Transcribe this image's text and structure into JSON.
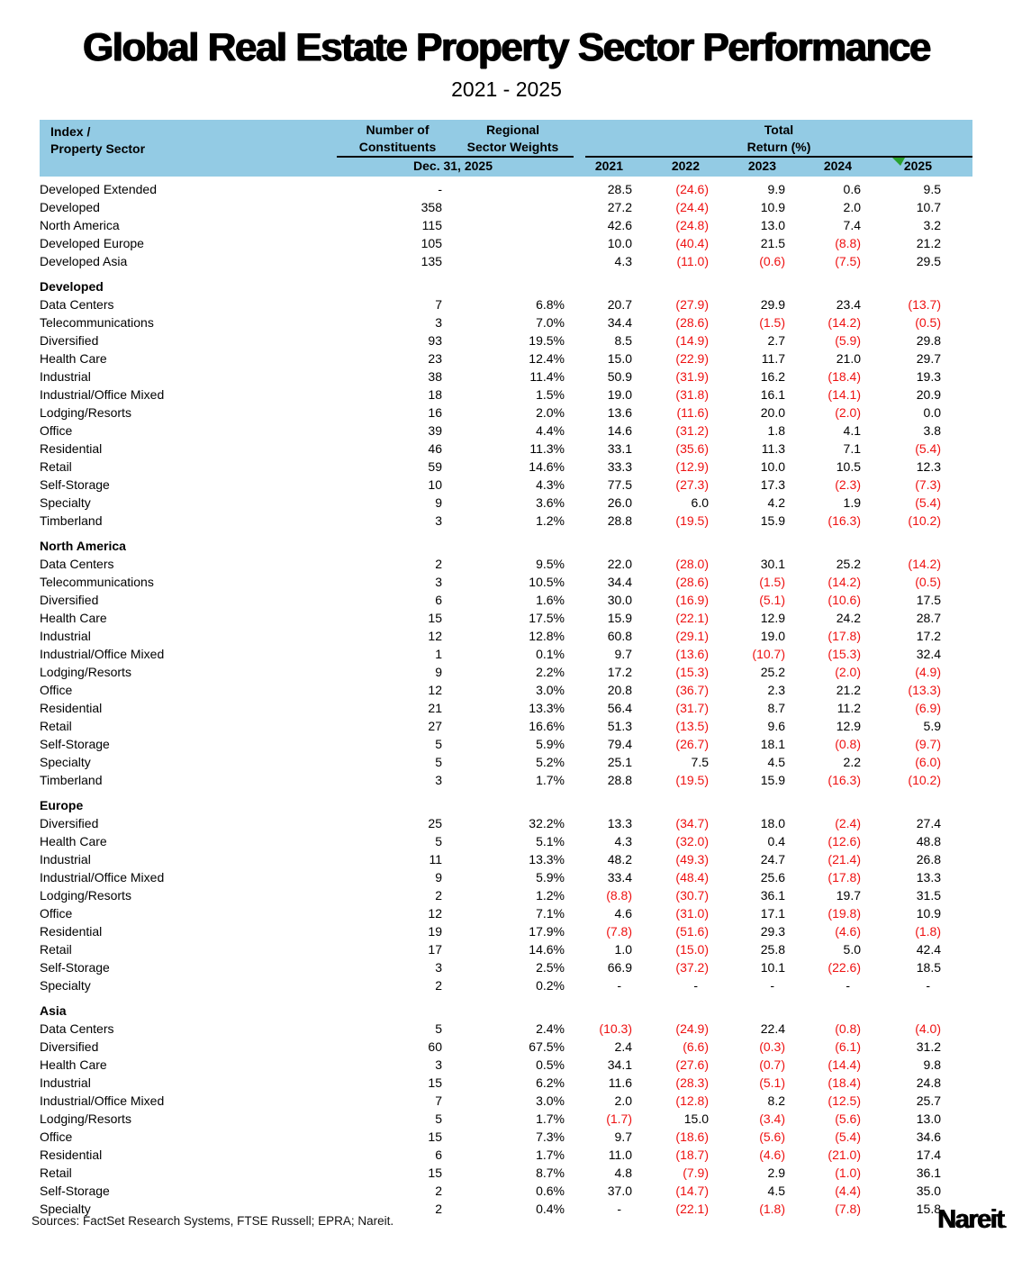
{
  "title": "Global Real Estate Property Sector Performance",
  "subtitle": "2021 - 2025",
  "colors": {
    "header_bg": "#93CBE4",
    "negative_red": "#EE1111",
    "flag_green": "#2AA12E",
    "text": "#000000"
  },
  "header": {
    "col1_line1": "Index /",
    "col1_line2": "Property Sector",
    "col2_line1": "Number of",
    "col2_line2": "Constituents",
    "col3_line1": "Regional",
    "col3_line2": "Sector Weights",
    "total_line1": "Total",
    "total_line2": "Return (%)",
    "date_label": "Dec. 31, 2025",
    "years": [
      "2021",
      "2022",
      "2023",
      "2024",
      "2025"
    ]
  },
  "chart_data": {
    "type": "table",
    "title": "Global Real Estate Property Sector Performance",
    "subtitle": "2021 - 2025",
    "columns": [
      "Index / Property Sector",
      "Number of Constituents Dec. 31, 2025",
      "Regional Sector Weights",
      "Total Return (%) 2021",
      "Total Return (%) 2022",
      "Total Return (%) 2023",
      "Total Return (%) 2024",
      "Total Return (%) 2025"
    ],
    "negative_format": "parentheses shown in red",
    "sections": [
      {
        "name": "",
        "rows": [
          [
            "Developed Extended",
            "-",
            "",
            "28.5",
            "(24.6)",
            "9.9",
            "0.6",
            "9.5"
          ],
          [
            "Developed",
            "358",
            "",
            "27.2",
            "(24.4)",
            "10.9",
            "2.0",
            "10.7"
          ],
          [
            "North America",
            "115",
            "",
            "42.6",
            "(24.8)",
            "13.0",
            "7.4",
            "3.2"
          ],
          [
            "Developed Europe",
            "105",
            "",
            "10.0",
            "(40.4)",
            "21.5",
            "(8.8)",
            "21.2"
          ],
          [
            "Developed Asia",
            "135",
            "",
            "4.3",
            "(11.0)",
            "(0.6)",
            "(7.5)",
            "29.5"
          ]
        ]
      },
      {
        "name": "Developed",
        "rows": [
          [
            "Data Centers",
            "7",
            "6.8%",
            "20.7",
            "(27.9)",
            "29.9",
            "23.4",
            "(13.7)"
          ],
          [
            "Telecommunications",
            "3",
            "7.0%",
            "34.4",
            "(28.6)",
            "(1.5)",
            "(14.2)",
            "(0.5)"
          ],
          [
            "Diversified",
            "93",
            "19.5%",
            "8.5",
            "(14.9)",
            "2.7",
            "(5.9)",
            "29.8"
          ],
          [
            "Health Care",
            "23",
            "12.4%",
            "15.0",
            "(22.9)",
            "11.7",
            "21.0",
            "29.7"
          ],
          [
            "Industrial",
            "38",
            "11.4%",
            "50.9",
            "(31.9)",
            "16.2",
            "(18.4)",
            "19.3"
          ],
          [
            "Industrial/Office Mixed",
            "18",
            "1.5%",
            "19.0",
            "(31.8)",
            "16.1",
            "(14.1)",
            "20.9"
          ],
          [
            "Lodging/Resorts",
            "16",
            "2.0%",
            "13.6",
            "(11.6)",
            "20.0",
            "(2.0)",
            "0.0"
          ],
          [
            "Office",
            "39",
            "4.4%",
            "14.6",
            "(31.2)",
            "1.8",
            "4.1",
            "3.8"
          ],
          [
            "Residential",
            "46",
            "11.3%",
            "33.1",
            "(35.6)",
            "11.3",
            "7.1",
            "(5.4)"
          ],
          [
            "Retail",
            "59",
            "14.6%",
            "33.3",
            "(12.9)",
            "10.0",
            "10.5",
            "12.3"
          ],
          [
            "Self-Storage",
            "10",
            "4.3%",
            "77.5",
            "(27.3)",
            "17.3",
            "(2.3)",
            "(7.3)"
          ],
          [
            "Specialty",
            "9",
            "3.6%",
            "26.0",
            "6.0",
            "4.2",
            "1.9",
            "(5.4)"
          ],
          [
            "Timberland",
            "3",
            "1.2%",
            "28.8",
            "(19.5)",
            "15.9",
            "(16.3)",
            "(10.2)"
          ]
        ]
      },
      {
        "name": "North America",
        "rows": [
          [
            "Data Centers",
            "2",
            "9.5%",
            "22.0",
            "(28.0)",
            "30.1",
            "25.2",
            "(14.2)"
          ],
          [
            "Telecommunications",
            "3",
            "10.5%",
            "34.4",
            "(28.6)",
            "(1.5)",
            "(14.2)",
            "(0.5)"
          ],
          [
            "Diversified",
            "6",
            "1.6%",
            "30.0",
            "(16.9)",
            "(5.1)",
            "(10.6)",
            "17.5"
          ],
          [
            "Health Care",
            "15",
            "17.5%",
            "15.9",
            "(22.1)",
            "12.9",
            "24.2",
            "28.7"
          ],
          [
            "Industrial",
            "12",
            "12.8%",
            "60.8",
            "(29.1)",
            "19.0",
            "(17.8)",
            "17.2"
          ],
          [
            "Industrial/Office Mixed",
            "1",
            "0.1%",
            "9.7",
            "(13.6)",
            "(10.7)",
            "(15.3)",
            "32.4"
          ],
          [
            "Lodging/Resorts",
            "9",
            "2.2%",
            "17.2",
            "(15.3)",
            "25.2",
            "(2.0)",
            "(4.9)"
          ],
          [
            "Office",
            "12",
            "3.0%",
            "20.8",
            "(36.7)",
            "2.3",
            "21.2",
            "(13.3)"
          ],
          [
            "Residential",
            "21",
            "13.3%",
            "56.4",
            "(31.7)",
            "8.7",
            "11.2",
            "(6.9)"
          ],
          [
            "Retail",
            "27",
            "16.6%",
            "51.3",
            "(13.5)",
            "9.6",
            "12.9",
            "5.9"
          ],
          [
            "Self-Storage",
            "5",
            "5.9%",
            "79.4",
            "(26.7)",
            "18.1",
            "(0.8)",
            "(9.7)"
          ],
          [
            "Specialty",
            "5",
            "5.2%",
            "25.1",
            "7.5",
            "4.5",
            "2.2",
            "(6.0)"
          ],
          [
            "Timberland",
            "3",
            "1.7%",
            "28.8",
            "(19.5)",
            "15.9",
            "(16.3)",
            "(10.2)"
          ]
        ]
      },
      {
        "name": "Europe",
        "rows": [
          [
            "Diversified",
            "25",
            "32.2%",
            "13.3",
            "(34.7)",
            "18.0",
            "(2.4)",
            "27.4"
          ],
          [
            "Health Care",
            "5",
            "5.1%",
            "4.3",
            "(32.0)",
            "0.4",
            "(12.6)",
            "48.8"
          ],
          [
            "Industrial",
            "11",
            "13.3%",
            "48.2",
            "(49.3)",
            "24.7",
            "(21.4)",
            "26.8"
          ],
          [
            "Industrial/Office Mixed",
            "9",
            "5.9%",
            "33.4",
            "(48.4)",
            "25.6",
            "(17.8)",
            "13.3"
          ],
          [
            "Lodging/Resorts",
            "2",
            "1.2%",
            "(8.8)",
            "(30.7)",
            "36.1",
            "19.7",
            "31.5"
          ],
          [
            "Office",
            "12",
            "7.1%",
            "4.6",
            "(31.0)",
            "17.1",
            "(19.8)",
            "10.9"
          ],
          [
            "Residential",
            "19",
            "17.9%",
            "(7.8)",
            "(51.6)",
            "29.3",
            "(4.6)",
            "(1.8)"
          ],
          [
            "Retail",
            "17",
            "14.6%",
            "1.0",
            "(15.0)",
            "25.8",
            "5.0",
            "42.4"
          ],
          [
            "Self-Storage",
            "3",
            "2.5%",
            "66.9",
            "(37.2)",
            "10.1",
            "(22.6)",
            "18.5"
          ],
          [
            "Specialty",
            "2",
            "0.2%",
            "-",
            "-",
            "-",
            "-",
            "-"
          ]
        ]
      },
      {
        "name": "Asia",
        "rows": [
          [
            "Data Centers",
            "5",
            "2.4%",
            "(10.3)",
            "(24.9)",
            "22.4",
            "(0.8)",
            "(4.0)"
          ],
          [
            "Diversified",
            "60",
            "67.5%",
            "2.4",
            "(6.6)",
            "(0.3)",
            "(6.1)",
            "31.2"
          ],
          [
            "Health Care",
            "3",
            "0.5%",
            "34.1",
            "(27.6)",
            "(0.7)",
            "(14.4)",
            "9.8"
          ],
          [
            "Industrial",
            "15",
            "6.2%",
            "11.6",
            "(28.3)",
            "(5.1)",
            "(18.4)",
            "24.8"
          ],
          [
            "Industrial/Office Mixed",
            "7",
            "3.0%",
            "2.0",
            "(12.8)",
            "8.2",
            "(12.5)",
            "25.7"
          ],
          [
            "Lodging/Resorts",
            "5",
            "1.7%",
            "(1.7)",
            "15.0",
            "(3.4)",
            "(5.6)",
            "13.0"
          ],
          [
            "Office",
            "15",
            "7.3%",
            "9.7",
            "(18.6)",
            "(5.6)",
            "(5.4)",
            "34.6"
          ],
          [
            "Residential",
            "6",
            "1.7%",
            "11.0",
            "(18.7)",
            "(4.6)",
            "(21.0)",
            "17.4"
          ],
          [
            "Retail",
            "15",
            "8.7%",
            "4.8",
            "(7.9)",
            "2.9",
            "(1.0)",
            "36.1"
          ],
          [
            "Self-Storage",
            "2",
            "0.6%",
            "37.0",
            "(14.7)",
            "4.5",
            "(4.4)",
            "35.0"
          ],
          [
            "Specialty",
            "2",
            "0.4%",
            "-",
            "(22.1)",
            "(1.8)",
            "(7.8)",
            "15.8"
          ]
        ]
      }
    ]
  },
  "footer": {
    "sources": "Sources: FactSet Research Systems, FTSE Russell; EPRA; Nareit.",
    "logo": "Nareit",
    "logo_mark": "."
  }
}
